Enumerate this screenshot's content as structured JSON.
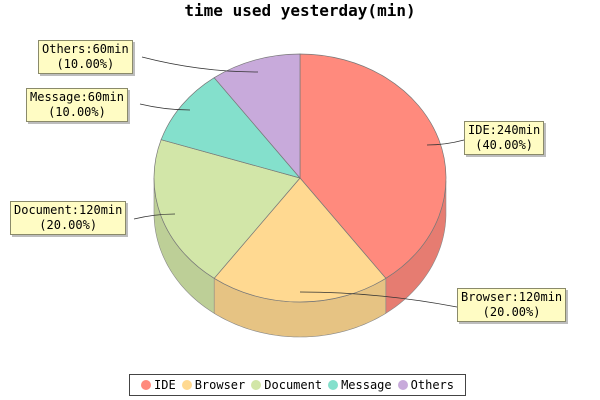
{
  "chart_data": {
    "type": "pie",
    "title": "time used yesterday(min)",
    "unit": "min",
    "slices": [
      {
        "name": "IDE",
        "value": 240,
        "percent": "40.00%",
        "color": "#ff8a7d"
      },
      {
        "name": "Browser",
        "value": 120,
        "percent": "20.00%",
        "color": "#ffd991"
      },
      {
        "name": "Document",
        "value": 120,
        "percent": "20.00%",
        "color": "#d2e6a8"
      },
      {
        "name": "Message",
        "value": 60,
        "percent": "10.00%",
        "color": "#84e0cc"
      },
      {
        "name": "Others",
        "value": 60,
        "percent": "10.00%",
        "color": "#c8aadb"
      }
    ],
    "labels": [
      {
        "text": "IDE:240min",
        "pct": "(40.00%)"
      },
      {
        "text": "Browser:120min",
        "pct": "(20.00%)"
      },
      {
        "text": "Document:120min",
        "pct": "(20.00%)"
      },
      {
        "text": "Message:60min",
        "pct": "(10.00%)"
      },
      {
        "text": "Others:60min",
        "pct": "(10.00%)"
      }
    ],
    "legend": [
      "IDE",
      "Browser",
      "Document",
      "Message",
      "Others"
    ],
    "legend_position": "bottom"
  }
}
